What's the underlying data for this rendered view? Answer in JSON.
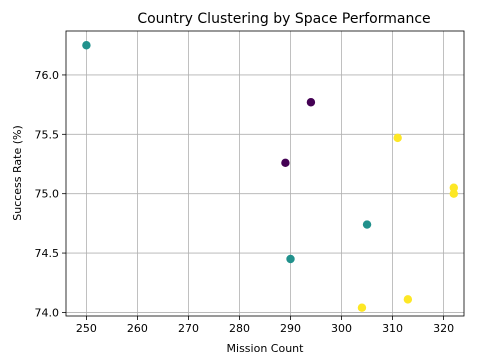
{
  "chart_data": {
    "type": "scatter",
    "title": "Country Clustering by Space Performance",
    "xlabel": "Mission Count",
    "ylabel": "Success Rate (%)",
    "xlim": [
      246,
      324
    ],
    "ylim": [
      73.97,
      76.37
    ],
    "xticks": [
      250,
      260,
      270,
      280,
      290,
      300,
      310,
      320
    ],
    "yticks": [
      74.0,
      74.5,
      75.0,
      75.5,
      76.0
    ],
    "ytick_labels": [
      "74.0",
      "74.5",
      "75.0",
      "75.5",
      "76.0"
    ],
    "grid": true,
    "points": [
      {
        "x": 250,
        "y": 76.25,
        "cluster": 1
      },
      {
        "x": 294,
        "y": 75.77,
        "cluster": 0
      },
      {
        "x": 289,
        "y": 75.26,
        "cluster": 0
      },
      {
        "x": 311,
        "y": 75.47,
        "cluster": 2
      },
      {
        "x": 322,
        "y": 75.05,
        "cluster": 2
      },
      {
        "x": 322,
        "y": 75.0,
        "cluster": 2
      },
      {
        "x": 305,
        "y": 74.74,
        "cluster": 1
      },
      {
        "x": 290,
        "y": 74.45,
        "cluster": 1
      },
      {
        "x": 313,
        "y": 74.11,
        "cluster": 2
      },
      {
        "x": 304,
        "y": 74.04,
        "cluster": 2
      }
    ],
    "cluster_colors": [
      "#440154",
      "#21918c",
      "#fde725"
    ]
  }
}
